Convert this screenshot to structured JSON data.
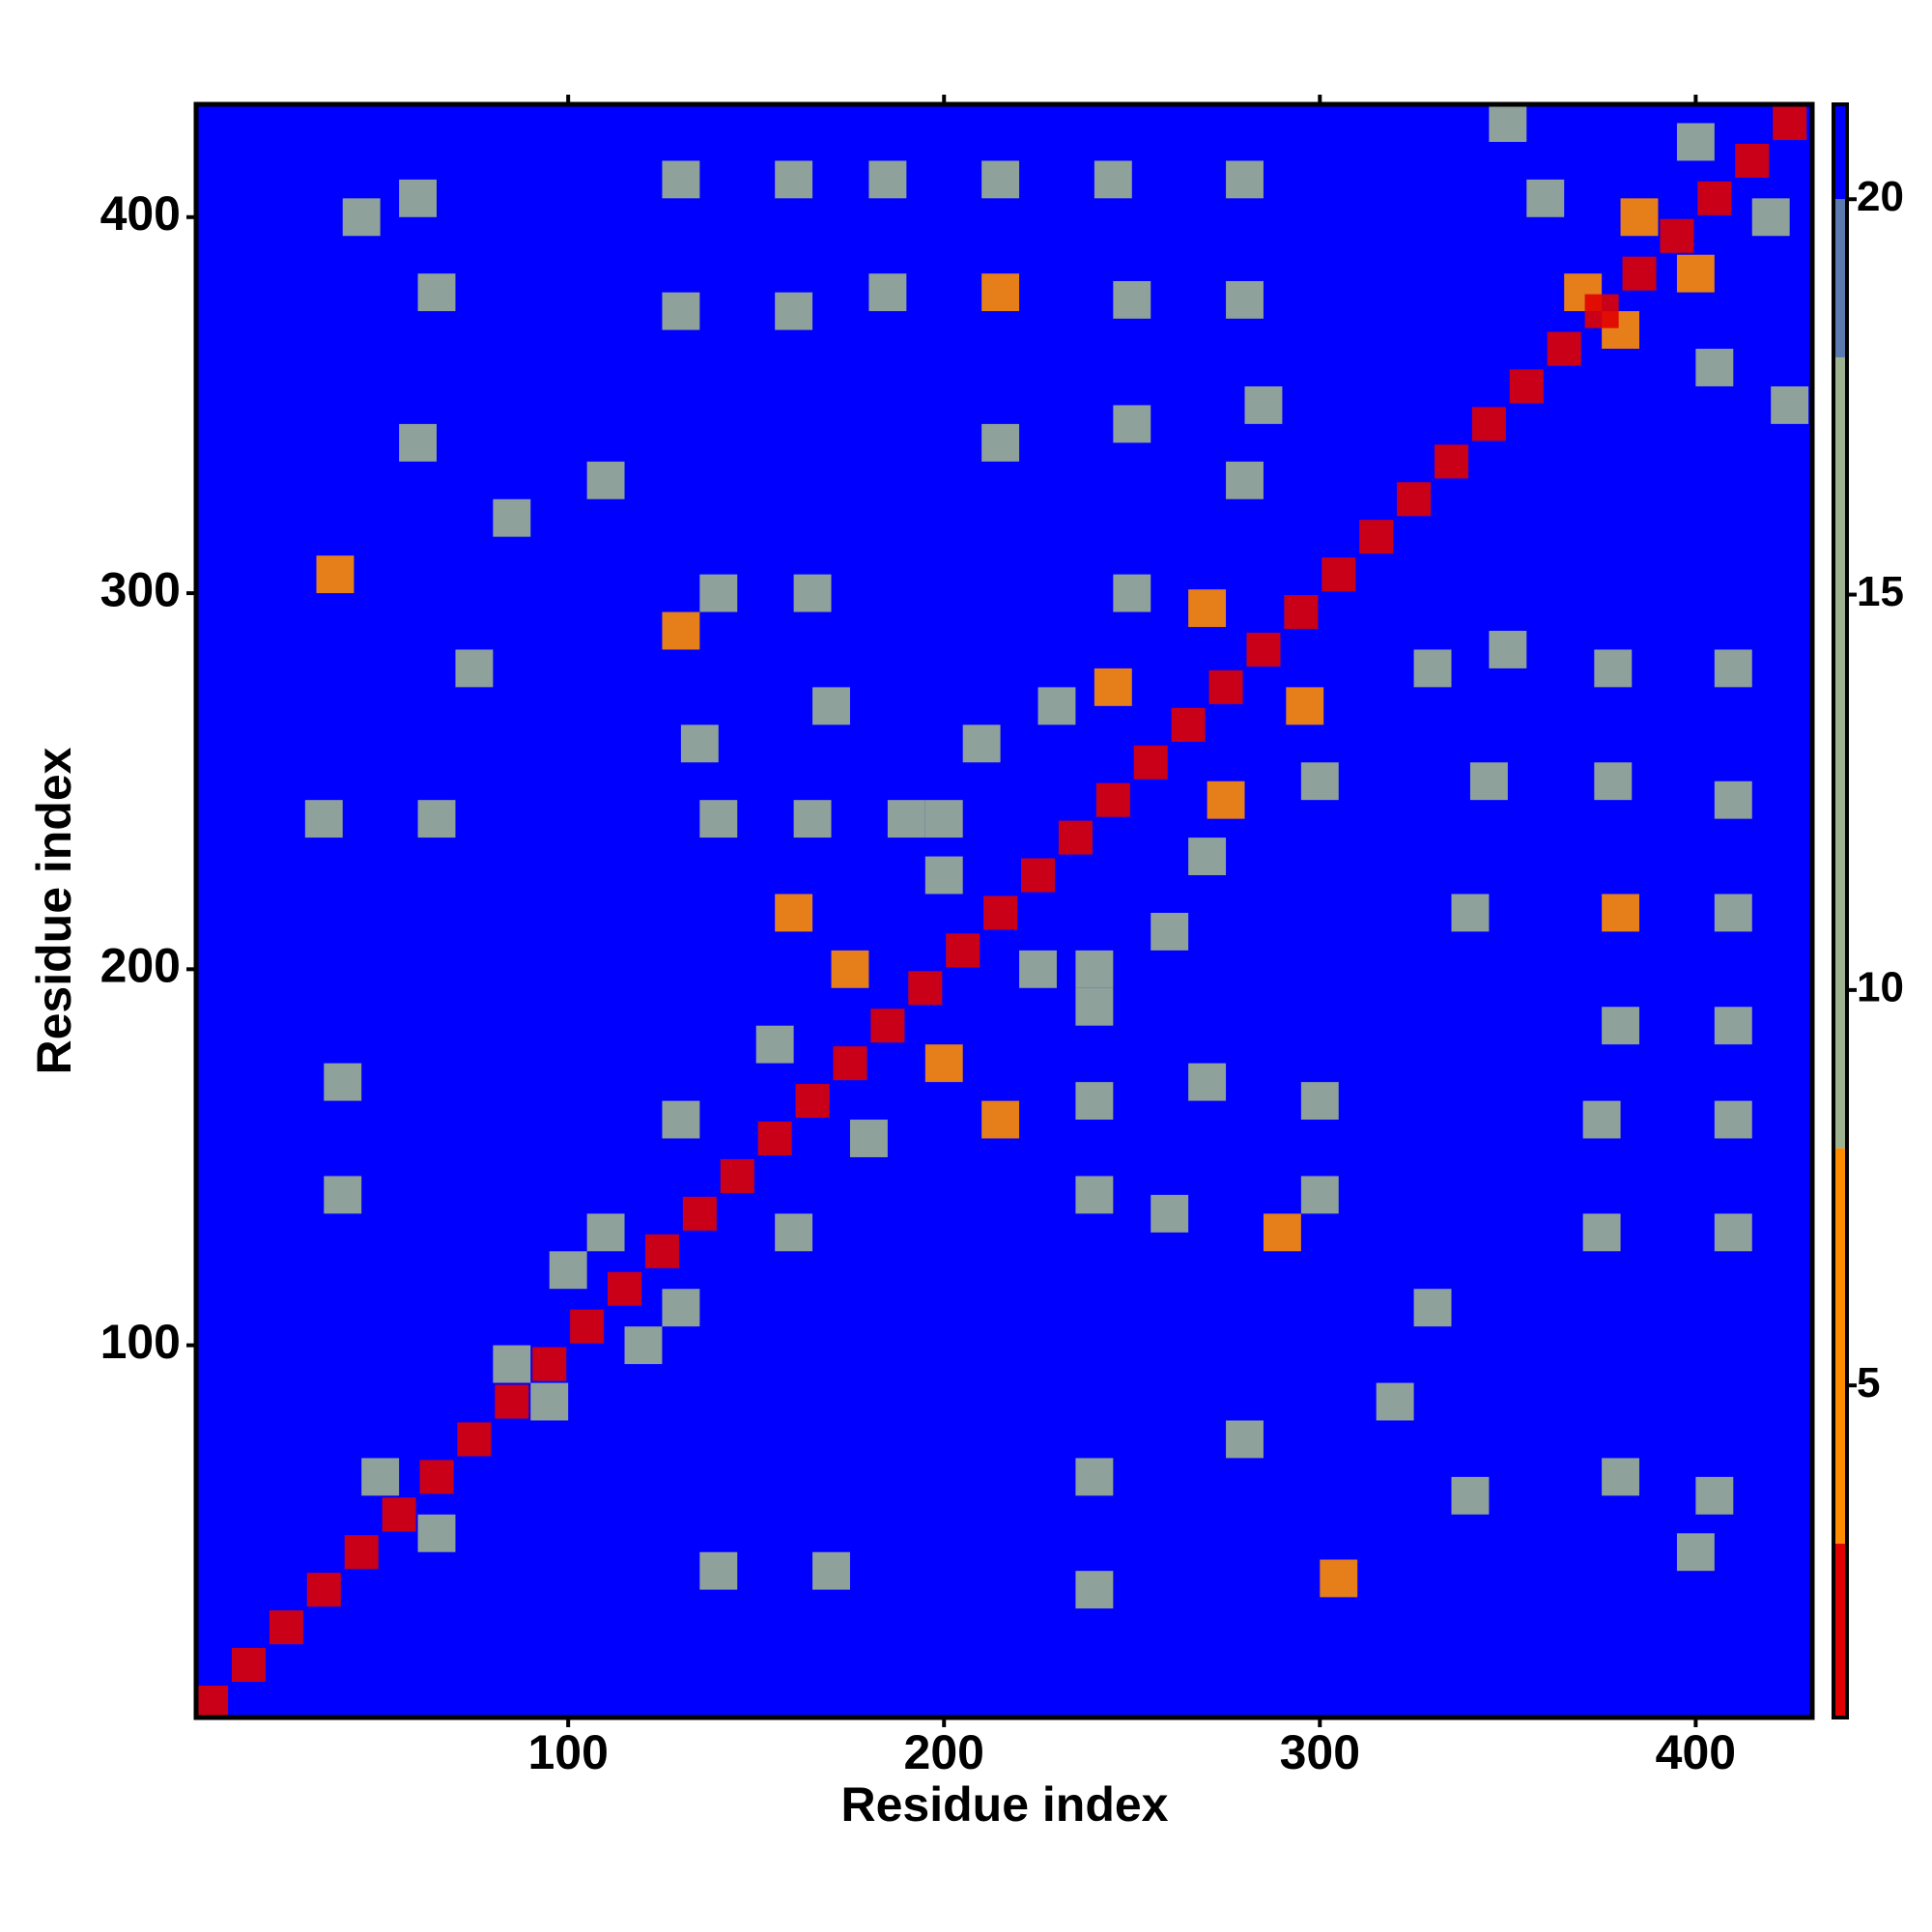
{
  "chart_data": {
    "type": "heatmap",
    "x_label": "Residue index",
    "y_label": "Residue index",
    "xlim": [
      1,
      431
    ],
    "ylim": [
      1,
      430
    ],
    "xticks": [
      100,
      200,
      300,
      400
    ],
    "yticks": [
      100,
      200,
      300,
      400
    ],
    "zlim": [
      0.8,
      21.2
    ],
    "zticks": [
      5,
      10,
      15,
      20
    ],
    "color_breaks": [
      3,
      8,
      18,
      20
    ],
    "colors": [
      "#e00000",
      "#ff8c00",
      "#9db38f",
      "#5a7ab0",
      "#0000ff"
    ],
    "background_value": 21,
    "contacts": {
      "x": [
        45,
        60,
        65,
        38,
        60,
        85,
        110,
        75,
        130,
        140,
        135,
        165,
        170,
        140,
        165,
        190,
        130,
        160,
        185,
        215,
        250,
        280,
        130,
        160,
        185,
        215,
        245,
        280,
        215,
        250,
        280,
        285,
        250,
        270,
        160,
        175,
        200,
        230,
        245,
        200,
        210,
        155,
        130,
        100,
        110,
        50,
        85,
        370,
        385,
        400,
        360,
        350,
        40,
        40,
        35,
        65
      ],
      "y": [
        400,
        405,
        380,
        305,
        340,
        320,
        330,
        280,
        290,
        300,
        260,
        300,
        270,
        240,
        240,
        240,
        375,
        375,
        380,
        380,
        378,
        378,
        410,
        410,
        410,
        410,
        410,
        410,
        340,
        345,
        330,
        350,
        300,
        296,
        215,
        200,
        240,
        270,
        275,
        225,
        260,
        180,
        160,
        120,
        130,
        65,
        95,
        380,
        400,
        420,
        405,
        425,
        170,
        140,
        240,
        240
      ],
      "values": [
        12,
        8,
        10,
        6,
        9,
        8,
        10,
        10,
        7,
        8,
        9,
        11,
        10,
        9,
        10,
        11,
        12,
        11,
        10,
        7,
        9,
        12,
        13,
        12,
        11,
        9,
        10,
        11,
        11,
        9,
        9,
        11,
        11,
        6,
        7,
        7,
        8,
        9,
        7,
        8,
        9,
        8,
        9,
        9,
        8,
        8,
        9,
        6,
        7,
        8,
        9,
        11,
        12,
        14,
        14,
        13
      ]
    },
    "diagonal": {
      "x": [
        5,
        15,
        25,
        35,
        45,
        55,
        65,
        75,
        85,
        95,
        105,
        115,
        125,
        135,
        145,
        155,
        165,
        175,
        185,
        195,
        205,
        215,
        225,
        235,
        245,
        255,
        265,
        275,
        285,
        295,
        305,
        315,
        325,
        335,
        345,
        355,
        365,
        375,
        385,
        395,
        405,
        415,
        425
      ],
      "values": [
        2,
        2,
        2,
        2,
        2,
        2,
        2,
        2,
        2,
        2,
        2,
        2,
        2,
        2,
        2,
        2,
        2,
        2,
        2,
        2,
        2,
        2,
        2,
        2,
        2,
        2,
        2,
        2,
        2,
        2,
        2,
        2,
        2,
        2,
        2,
        2,
        2,
        2,
        2,
        2,
        2,
        2,
        2
      ]
    }
  }
}
